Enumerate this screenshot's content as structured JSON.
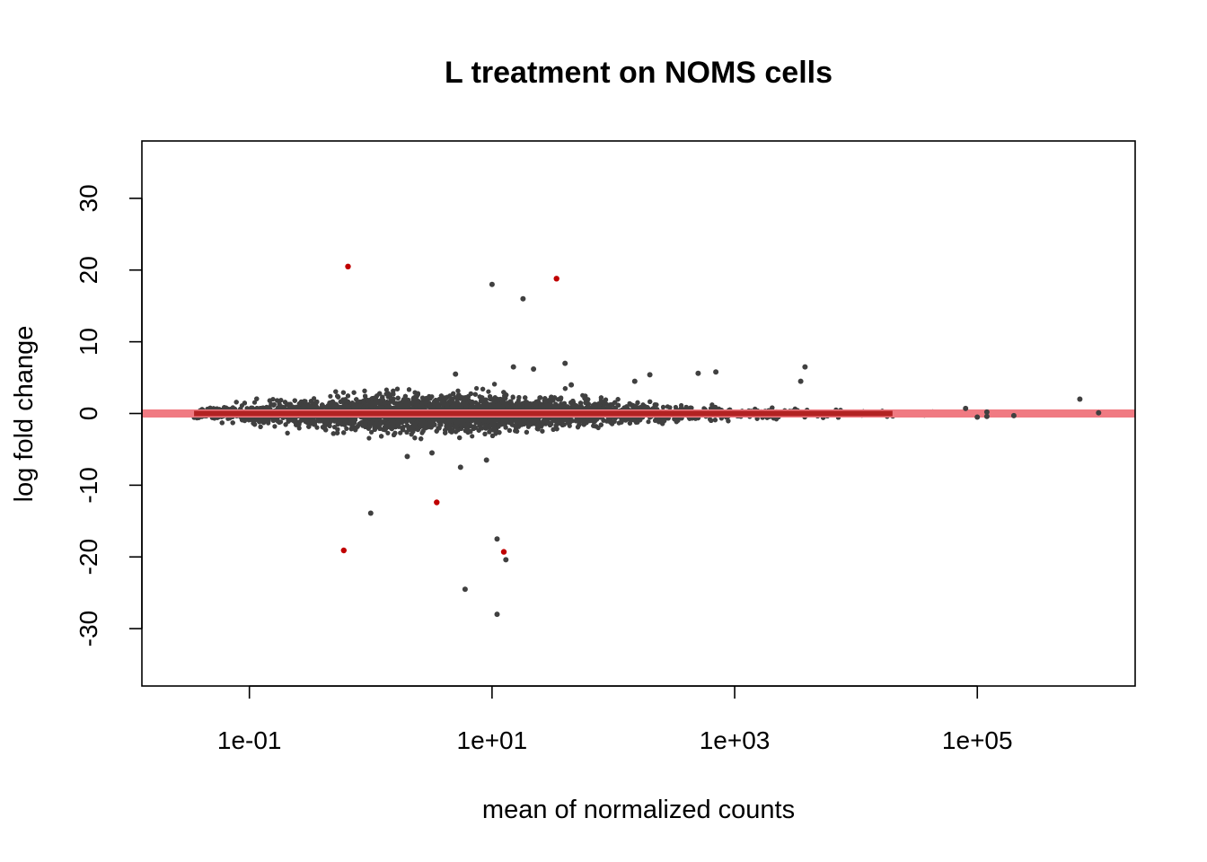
{
  "chart_data": {
    "type": "scatter",
    "title": "L treatment on NOMS cells",
    "xlabel": "mean of normalized counts",
    "ylabel": "log fold change",
    "x_scale": "log10",
    "xlim": [
      0.013,
      2000000
    ],
    "ylim": [
      -38,
      38
    ],
    "x_ticks": [
      {
        "value": 0.1,
        "label": "1e-01"
      },
      {
        "value": 10,
        "label": "1e+01"
      },
      {
        "value": 1000,
        "label": "1e+03"
      },
      {
        "value": 100000,
        "label": "1e+05"
      }
    ],
    "y_ticks": [
      {
        "value": -30,
        "label": "-30"
      },
      {
        "value": -20,
        "label": "-20"
      },
      {
        "value": -10,
        "label": "-10"
      },
      {
        "value": 0,
        "label": "0"
      },
      {
        "value": 10,
        "label": "10"
      },
      {
        "value": 20,
        "label": "20"
      },
      {
        "value": 30,
        "label": "30"
      }
    ],
    "grid": false,
    "legend": "none",
    "reference_line": {
      "y": 0,
      "color": "#f07a82"
    },
    "colors": {
      "not_significant": "#404040",
      "significant": "#c00000",
      "center_band": "#b22222"
    },
    "significant_points": [
      [
        0.65,
        20.5
      ],
      [
        34.0,
        18.8
      ],
      [
        0.6,
        -19.1
      ],
      [
        3.5,
        -12.4
      ],
      [
        12.5,
        -19.3
      ]
    ],
    "outlier_points": [
      [
        10.0,
        18.0
      ],
      [
        18.0,
        16.0
      ],
      [
        1.0,
        -13.9
      ],
      [
        6.0,
        -24.5
      ],
      [
        11.0,
        -17.5
      ],
      [
        13.0,
        -20.4
      ],
      [
        11.0,
        -28.0
      ],
      [
        5.5,
        -7.5
      ],
      [
        40.0,
        7.0
      ],
      [
        22.0,
        6.2
      ],
      [
        500.0,
        5.6
      ],
      [
        3800.0,
        6.5
      ],
      [
        200.0,
        5.4
      ],
      [
        5.0,
        5.5
      ],
      [
        15.0,
        6.5
      ],
      [
        700.0,
        5.8
      ],
      [
        3500.0,
        4.5
      ],
      [
        3.2,
        -5.5
      ],
      [
        9.0,
        -6.5
      ],
      [
        2.0,
        -6.0
      ],
      [
        150.0,
        4.5
      ],
      [
        45.0,
        4.0
      ],
      [
        80000.0,
        0.7
      ],
      [
        700000.0,
        2.0
      ],
      [
        1000000.0,
        0.1
      ],
      [
        120000.0,
        0.2
      ],
      [
        200000.0,
        -0.3
      ],
      [
        100000.0,
        -0.5
      ],
      [
        120000.0,
        -0.4
      ]
    ],
    "dense_cloud": {
      "description": "approx. 20000 non-significant genes",
      "x_range": [
        0.035,
        50000
      ],
      "spread_profile": [
        {
          "x": 0.035,
          "sd": 0.35
        },
        {
          "x": 0.3,
          "sd": 0.9
        },
        {
          "x": 2,
          "sd": 1.3
        },
        {
          "x": 10,
          "sd": 1.15
        },
        {
          "x": 100,
          "sd": 0.75
        },
        {
          "x": 1000,
          "sd": 0.45
        },
        {
          "x": 10000,
          "sd": 0.22
        },
        {
          "x": 50000,
          "sd": 0.12
        }
      ]
    }
  }
}
